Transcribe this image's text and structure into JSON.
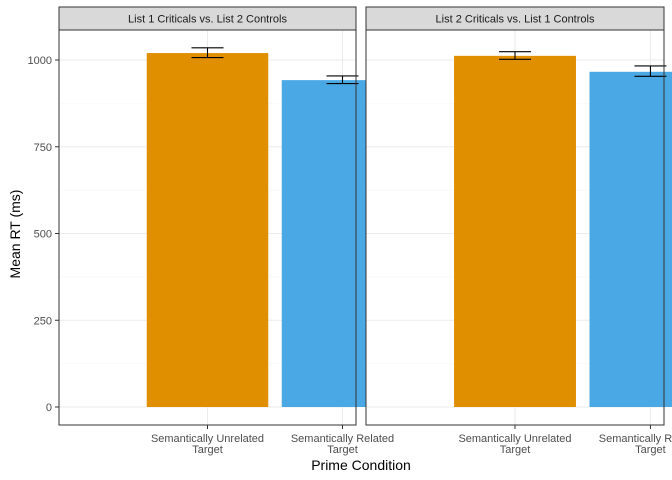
{
  "chart_data": {
    "type": "bar",
    "xlabel": "Prime Condition",
    "ylabel": "Mean RT (ms)",
    "ylim": [
      0,
      1090
    ],
    "yticks": [
      0,
      250,
      500,
      750,
      1000
    ],
    "grid": true,
    "legend": "none",
    "categories": [
      [
        "Semantically Unrelated",
        "Target"
      ],
      [
        "Semantically Related",
        "Target"
      ]
    ],
    "colors": [
      "#E08F00",
      "#4AA8E5"
    ],
    "panels": [
      {
        "title": "List 1 Criticals vs. List 2 Controls",
        "values": [
          1020,
          942
        ],
        "error_low": [
          1007,
          932
        ],
        "error_high": [
          1035,
          954
        ]
      },
      {
        "title": "List 2 Criticals vs. List 1 Controls",
        "values": [
          1012,
          966
        ],
        "error_low": [
          1002,
          953
        ],
        "error_high": [
          1024,
          983
        ]
      }
    ]
  }
}
